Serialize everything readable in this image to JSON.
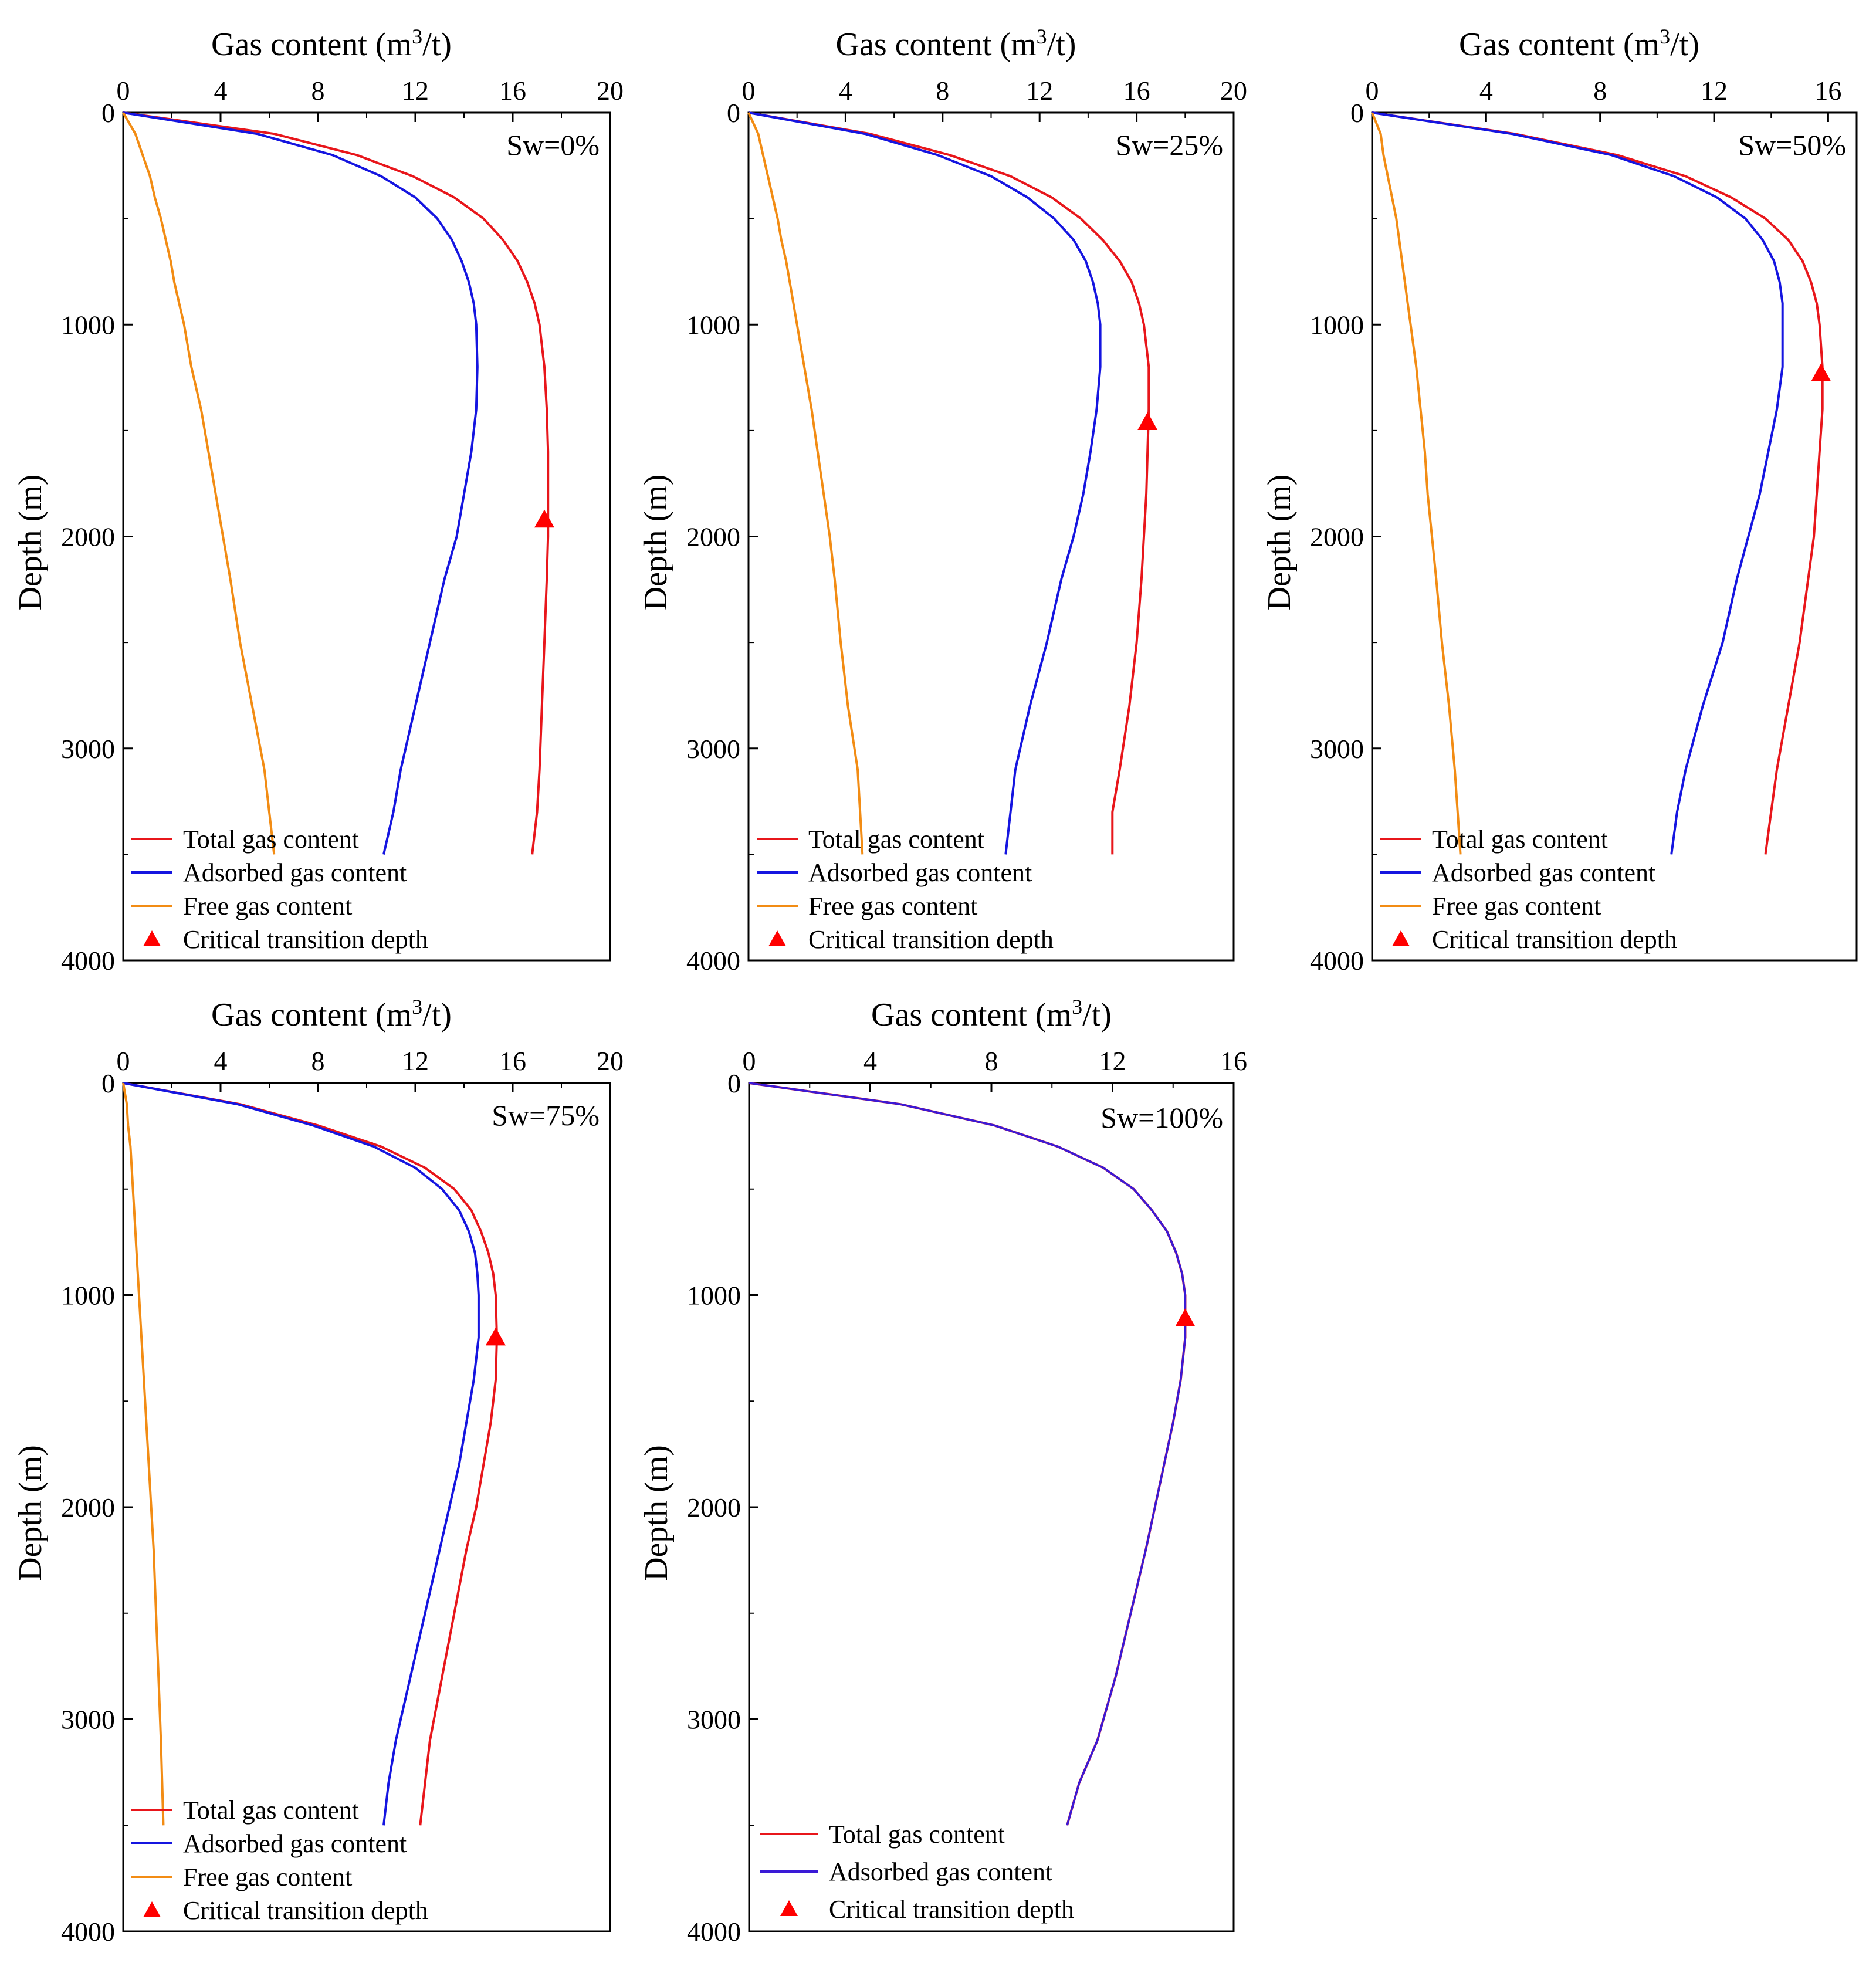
{
  "chart_data": [
    {
      "type": "line",
      "annotation": "Sw=0%",
      "xlabel_main": "Gas content (m",
      "xlabel_sup": "3",
      "xlabel_end": "/t)",
      "ylabel": "Depth (m)",
      "xlim": [
        0,
        20
      ],
      "ylim": [
        0,
        4000
      ],
      "xticks": [
        0,
        4,
        8,
        12,
        16,
        20
      ],
      "yticks": [
        0,
        1000,
        2000,
        3000,
        4000
      ],
      "depth": [
        0,
        100,
        200,
        300,
        400,
        500,
        600,
        700,
        800,
        900,
        1000,
        1200,
        1400,
        1600,
        1800,
        2000,
        2200,
        2500,
        2800,
        3100,
        3300,
        3500
      ],
      "series": [
        {
          "name": "Total gas content",
          "color": "#e8161b",
          "values": [
            0,
            6.2,
            9.6,
            11.9,
            13.6,
            14.8,
            15.6,
            16.2,
            16.6,
            16.9,
            17.1,
            17.3,
            17.4,
            17.45,
            17.45,
            17.45,
            17.4,
            17.3,
            17.2,
            17.1,
            17.0,
            16.8
          ]
        },
        {
          "name": "Adsorbed gas content",
          "color": "#1515e0",
          "values": [
            0,
            5.5,
            8.6,
            10.6,
            12.0,
            12.9,
            13.5,
            13.9,
            14.2,
            14.4,
            14.5,
            14.55,
            14.5,
            14.3,
            14.0,
            13.7,
            13.2,
            12.6,
            12.0,
            11.4,
            11.1,
            10.7
          ]
        },
        {
          "name": "Free gas content",
          "color": "#f28c14",
          "values": [
            0,
            0.5,
            0.8,
            1.1,
            1.3,
            1.55,
            1.75,
            1.95,
            2.1,
            2.3,
            2.5,
            2.8,
            3.2,
            3.5,
            3.8,
            4.1,
            4.4,
            4.8,
            5.3,
            5.8,
            6.0,
            6.2
          ]
        }
      ],
      "critical_point": {
        "name": "Critical transition depth",
        "color": "#ff0000",
        "x": 17.3,
        "y": 1920
      },
      "legend": [
        "Total gas content",
        "Adsorbed gas content",
        "Free gas content",
        "Critical transition depth"
      ],
      "legend_position": "bottom-left"
    },
    {
      "type": "line",
      "annotation": "Sw=25%",
      "xlabel_main": "Gas content (m",
      "xlabel_sup": "3",
      "xlabel_end": "/t)",
      "ylabel": "Depth (m)",
      "xlim": [
        0,
        20
      ],
      "ylim": [
        0,
        4000
      ],
      "xticks": [
        0,
        4,
        8,
        12,
        16,
        20
      ],
      "yticks": [
        0,
        1000,
        2000,
        3000,
        4000
      ],
      "depth": [
        0,
        100,
        200,
        300,
        400,
        500,
        600,
        700,
        800,
        900,
        1000,
        1200,
        1400,
        1600,
        1800,
        2000,
        2200,
        2500,
        2800,
        3100,
        3300,
        3500
      ],
      "series": [
        {
          "name": "Total gas content",
          "color": "#e8161b",
          "values": [
            0,
            5.0,
            8.3,
            10.8,
            12.5,
            13.7,
            14.6,
            15.3,
            15.8,
            16.1,
            16.3,
            16.5,
            16.5,
            16.45,
            16.4,
            16.3,
            16.2,
            16.0,
            15.7,
            15.3,
            15.0,
            15.0
          ]
        },
        {
          "name": "Adsorbed gas content",
          "color": "#1515e0",
          "values": [
            0,
            4.8,
            7.8,
            10.0,
            11.5,
            12.6,
            13.4,
            13.9,
            14.2,
            14.4,
            14.5,
            14.5,
            14.35,
            14.1,
            13.8,
            13.4,
            12.9,
            12.3,
            11.6,
            11.0,
            10.8,
            10.6
          ]
        },
        {
          "name": "Free gas content",
          "color": "#f28c14",
          "values": [
            0,
            0.4,
            0.6,
            0.8,
            1.0,
            1.2,
            1.35,
            1.55,
            1.7,
            1.85,
            2.0,
            2.3,
            2.6,
            2.85,
            3.1,
            3.35,
            3.55,
            3.8,
            4.1,
            4.5,
            4.6,
            4.7
          ]
        }
      ],
      "critical_point": {
        "name": "Critical transition depth",
        "color": "#ff0000",
        "x": 16.45,
        "y": 1460
      },
      "legend": [
        "Total gas content",
        "Adsorbed gas content",
        "Free gas content",
        "Critical transition depth"
      ],
      "legend_position": "bottom-left"
    },
    {
      "type": "line",
      "annotation": "Sw=50%",
      "xlabel_main": "Gas content (m",
      "xlabel_sup": "3",
      "xlabel_end": "/t)",
      "ylabel": "Depth (m)",
      "xlim": [
        0,
        17
      ],
      "ylim": [
        0,
        4000
      ],
      "xticks": [
        0,
        4,
        8,
        12,
        16
      ],
      "yticks": [
        0,
        1000,
        2000,
        3000,
        4000
      ],
      "depth": [
        0,
        100,
        200,
        300,
        400,
        500,
        600,
        700,
        800,
        900,
        1000,
        1200,
        1400,
        1600,
        1800,
        2000,
        2200,
        2500,
        2800,
        3100,
        3300,
        3500
      ],
      "series": [
        {
          "name": "Total gas content",
          "color": "#e8161b",
          "values": [
            0,
            5.0,
            8.6,
            11.0,
            12.6,
            13.8,
            14.6,
            15.1,
            15.4,
            15.6,
            15.7,
            15.8,
            15.8,
            15.7,
            15.6,
            15.5,
            15.3,
            15.0,
            14.6,
            14.2,
            14.0,
            13.8
          ]
        },
        {
          "name": "Adsorbed gas content",
          "color": "#1515e0",
          "values": [
            0,
            4.9,
            8.4,
            10.6,
            12.1,
            13.1,
            13.7,
            14.1,
            14.3,
            14.4,
            14.4,
            14.4,
            14.2,
            13.9,
            13.6,
            13.2,
            12.8,
            12.3,
            11.6,
            11.0,
            10.7,
            10.5
          ]
        },
        {
          "name": "Free gas content",
          "color": "#f28c14",
          "values": [
            0,
            0.3,
            0.4,
            0.55,
            0.7,
            0.85,
            0.95,
            1.05,
            1.15,
            1.25,
            1.35,
            1.55,
            1.7,
            1.85,
            1.95,
            2.1,
            2.25,
            2.45,
            2.7,
            2.9,
            3.0,
            3.1
          ]
        }
      ],
      "critical_point": {
        "name": "Critical transition depth",
        "color": "#ff0000",
        "x": 15.75,
        "y": 1230
      },
      "legend": [
        "Total gas content",
        "Adsorbed gas content",
        "Free gas content",
        "Critical transition depth"
      ],
      "legend_position": "bottom-left"
    },
    {
      "type": "line",
      "annotation": "Sw=75%",
      "xlabel_main": "Gas content (m",
      "xlabel_sup": "3",
      "xlabel_end": "/t)",
      "ylabel": "Depth (m)",
      "xlim": [
        0,
        20
      ],
      "ylim": [
        0,
        4000
      ],
      "xticks": [
        0,
        4,
        8,
        12,
        16,
        20
      ],
      "yticks": [
        0,
        1000,
        2000,
        3000,
        4000
      ],
      "depth": [
        0,
        100,
        200,
        300,
        400,
        500,
        600,
        700,
        800,
        900,
        1000,
        1200,
        1400,
        1600,
        1800,
        2000,
        2200,
        2500,
        2800,
        3100,
        3300,
        3500
      ],
      "series": [
        {
          "name": "Total gas content",
          "color": "#e8161b",
          "values": [
            0,
            4.8,
            8.0,
            10.6,
            12.4,
            13.6,
            14.3,
            14.7,
            15.0,
            15.2,
            15.3,
            15.35,
            15.3,
            15.1,
            14.8,
            14.5,
            14.1,
            13.6,
            13.1,
            12.6,
            12.4,
            12.2
          ]
        },
        {
          "name": "Adsorbed gas content",
          "color": "#1515e0",
          "values": [
            0,
            4.7,
            7.8,
            10.3,
            12.0,
            13.1,
            13.8,
            14.2,
            14.45,
            14.55,
            14.6,
            14.6,
            14.4,
            14.1,
            13.8,
            13.4,
            13.0,
            12.4,
            11.8,
            11.2,
            10.9,
            10.7
          ]
        },
        {
          "name": "Free gas content",
          "color": "#f28c14",
          "values": [
            0,
            0.15,
            0.2,
            0.3,
            0.35,
            0.4,
            0.45,
            0.5,
            0.55,
            0.6,
            0.65,
            0.75,
            0.85,
            0.95,
            1.05,
            1.15,
            1.25,
            1.35,
            1.45,
            1.55,
            1.6,
            1.65
          ]
        }
      ],
      "critical_point": {
        "name": "Critical transition depth",
        "color": "#ff0000",
        "x": 15.3,
        "y": 1200
      },
      "legend": [
        "Total gas content",
        "Adsorbed gas content",
        "Free gas content",
        "Critical transition depth"
      ],
      "legend_position": "bottom-left"
    },
    {
      "type": "line",
      "annotation": "Sw=100%",
      "xlabel_main": "Gas content (m",
      "xlabel_sup": "3",
      "xlabel_end": "/t)",
      "ylabel": "Depth (m)",
      "xlim": [
        0,
        16
      ],
      "ylim": [
        0,
        4000
      ],
      "xticks": [
        0,
        4,
        8,
        12,
        16
      ],
      "yticks": [
        0,
        1000,
        2000,
        3000,
        4000
      ],
      "depth": [
        0,
        100,
        200,
        300,
        400,
        500,
        600,
        700,
        800,
        900,
        1000,
        1200,
        1400,
        1600,
        1800,
        2000,
        2200,
        2500,
        2800,
        3100,
        3300,
        3500
      ],
      "series": [
        {
          "name": "Total gas content",
          "color": "#e8161b",
          "values": [
            0,
            5.0,
            8.1,
            10.2,
            11.7,
            12.7,
            13.3,
            13.8,
            14.1,
            14.3,
            14.4,
            14.4,
            14.25,
            14.0,
            13.7,
            13.4,
            13.1,
            12.6,
            12.1,
            11.5,
            10.9,
            10.5
          ]
        },
        {
          "name": "Adsorbed gas content",
          "color": "#3a1ad6",
          "values": [
            0,
            5.0,
            8.1,
            10.2,
            11.7,
            12.7,
            13.3,
            13.8,
            14.1,
            14.3,
            14.4,
            14.4,
            14.25,
            14.0,
            13.7,
            13.4,
            13.1,
            12.6,
            12.1,
            11.5,
            10.9,
            10.5
          ]
        }
      ],
      "critical_point": {
        "name": "Critical transition depth",
        "color": "#ff0000",
        "x": 14.4,
        "y": 1110
      },
      "legend": [
        "Total gas content",
        "Adsorbed gas content",
        "Critical transition depth"
      ],
      "legend_position": "bottom-left"
    }
  ]
}
